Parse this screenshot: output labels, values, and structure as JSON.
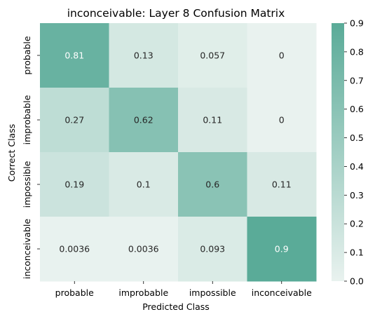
{
  "chart_data": {
    "type": "heatmap",
    "title": "inconceivable: Layer 8 Confusion Matrix",
    "xlabel": "Predicted Class",
    "ylabel": "Correct Class",
    "x_categories": [
      "probable",
      "improbable",
      "impossible",
      "inconceivable"
    ],
    "y_categories": [
      "probable",
      "improbable",
      "impossible",
      "inconceivable"
    ],
    "values": [
      [
        0.81,
        0.13,
        0.057,
        0
      ],
      [
        0.27,
        0.62,
        0.11,
        0
      ],
      [
        0.19,
        0.1,
        0.6,
        0.11
      ],
      [
        0.0036,
        0.0036,
        0.093,
        0.9
      ]
    ],
    "cell_labels": [
      [
        "0.81",
        "0.13",
        "0.057",
        "0"
      ],
      [
        "0.27",
        "0.62",
        "0.11",
        "0"
      ],
      [
        "0.19",
        "0.1",
        "0.6",
        "0.11"
      ],
      [
        "0.0036",
        "0.0036",
        "0.093",
        "0.9"
      ]
    ],
    "colorbar": {
      "range": [
        0.0,
        0.9
      ],
      "ticks": [
        "0.0",
        "0.1",
        "0.2",
        "0.3",
        "0.4",
        "0.5",
        "0.6",
        "0.7",
        "0.8",
        "0.9"
      ],
      "color_low": "#e9f2ef",
      "color_high": "#5aab98"
    },
    "text_color_dark": "#262626",
    "text_color_light": "#ffffff"
  }
}
